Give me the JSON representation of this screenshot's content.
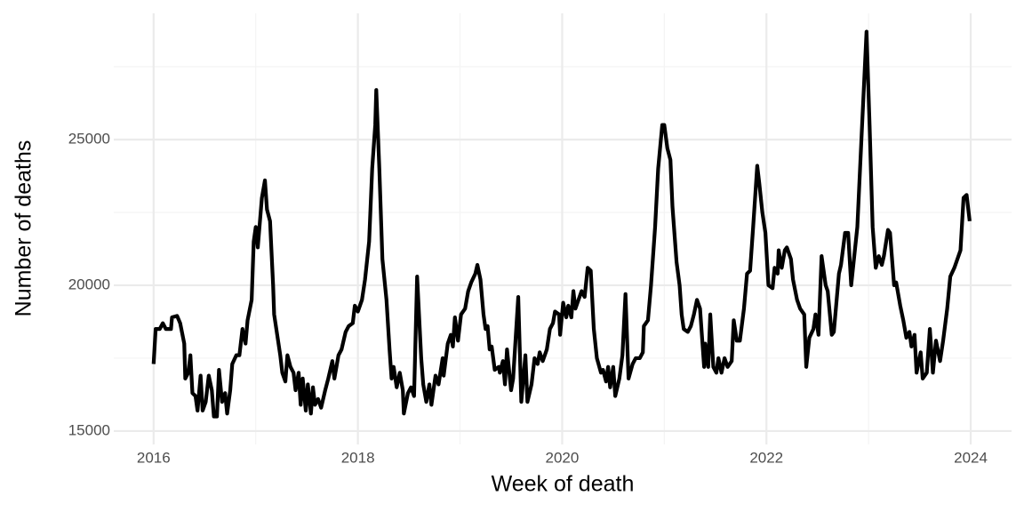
{
  "chart_data": {
    "type": "line",
    "x_label": "Week of death",
    "y_label": "Number of deaths",
    "color": "#000000",
    "grid": true,
    "xlim": [
      2015.61,
      2024.4
    ],
    "xticks": [
      2016,
      2018,
      2020,
      2022,
      2024
    ],
    "xminor": [
      2017,
      2019,
      2021,
      2023
    ],
    "ylim": [
      14540,
      29330
    ],
    "yticks": [
      15000,
      20000,
      25000
    ],
    "yminor": [
      17500,
      22500,
      27500
    ],
    "x": [
      2016.0,
      2016.02,
      2016.06,
      2016.09,
      2016.12,
      2016.17,
      2016.18,
      2016.23,
      2016.26,
      2016.3,
      2016.31,
      2016.34,
      2016.36,
      2016.38,
      2016.41,
      2016.43,
      2016.46,
      2016.48,
      2016.51,
      2016.54,
      2016.57,
      2016.59,
      2016.62,
      2016.64,
      2016.67,
      2016.7,
      2016.72,
      2016.75,
      2016.77,
      2016.81,
      2016.84,
      2016.87,
      2016.9,
      2016.92,
      2016.96,
      2016.98,
      2017.0,
      2017.02,
      2017.06,
      2017.09,
      2017.11,
      2017.14,
      2017.17,
      2017.18,
      2017.21,
      2017.24,
      2017.26,
      2017.29,
      2017.31,
      2017.34,
      2017.37,
      2017.39,
      2017.42,
      2017.44,
      2017.46,
      2017.49,
      2017.51,
      2017.54,
      2017.56,
      2017.58,
      2017.61,
      2017.64,
      2017.68,
      2017.71,
      2017.75,
      2017.77,
      2017.81,
      2017.84,
      2017.88,
      2017.91,
      2017.95,
      2017.97,
      2018.0,
      2018.04,
      2018.07,
      2018.11,
      2018.14,
      2018.17,
      2018.18,
      2018.21,
      2018.24,
      2018.28,
      2018.31,
      2018.33,
      2018.35,
      2018.38,
      2018.41,
      2018.44,
      2018.45,
      2018.49,
      2018.52,
      2018.55,
      2018.58,
      2018.62,
      2018.64,
      2018.67,
      2018.7,
      2018.72,
      2018.76,
      2018.79,
      2018.83,
      2018.84,
      2018.88,
      2018.91,
      2018.93,
      2018.95,
      2018.98,
      2019.01,
      2019.05,
      2019.08,
      2019.11,
      2019.15,
      2019.17,
      2019.2,
      2019.23,
      2019.25,
      2019.27,
      2019.29,
      2019.31,
      2019.34,
      2019.38,
      2019.39,
      2019.42,
      2019.44,
      2019.46,
      2019.5,
      2019.52,
      2019.57,
      2019.6,
      2019.64,
      2019.66,
      2019.7,
      2019.73,
      2019.76,
      2019.78,
      2019.81,
      2019.85,
      2019.88,
      2019.91,
      2019.93,
      2019.97,
      2019.98,
      2020.01,
      2020.04,
      2020.06,
      2020.09,
      2020.11,
      2020.13,
      2020.17,
      2020.19,
      2020.22,
      2020.25,
      2020.28,
      2020.31,
      2020.34,
      2020.38,
      2020.4,
      2020.43,
      2020.45,
      2020.47,
      2020.5,
      2020.52,
      2020.56,
      2020.59,
      2020.62,
      2020.65,
      2020.69,
      2020.72,
      2020.76,
      2020.79,
      2020.8,
      2020.84,
      2020.87,
      2020.91,
      2020.94,
      2020.98,
      2021.0,
      2021.03,
      2021.06,
      2021.08,
      2021.12,
      2021.15,
      2021.17,
      2021.19,
      2021.23,
      2021.26,
      2021.29,
      2021.32,
      2021.35,
      2021.39,
      2021.4,
      2021.43,
      2021.45,
      2021.48,
      2021.51,
      2021.53,
      2021.56,
      2021.59,
      2021.62,
      2021.66,
      2021.68,
      2021.71,
      2021.74,
      2021.78,
      2021.81,
      2021.84,
      2021.87,
      2021.91,
      2021.93,
      2021.96,
      2021.99,
      2022.02,
      2022.06,
      2022.08,
      2022.11,
      2022.12,
      2022.15,
      2022.18,
      2022.2,
      2022.24,
      2022.26,
      2022.3,
      2022.33,
      2022.37,
      2022.39,
      2022.42,
      2022.46,
      2022.48,
      2022.51,
      2022.54,
      2022.58,
      2022.6,
      2022.64,
      2022.66,
      2022.71,
      2022.73,
      2022.77,
      2022.8,
      2022.83,
      2022.86,
      2022.89,
      2022.93,
      2022.98,
      2023.01,
      2023.04,
      2023.07,
      2023.1,
      2023.13,
      2023.15,
      2023.19,
      2023.21,
      2023.25,
      2023.27,
      2023.31,
      2023.34,
      2023.37,
      2023.4,
      2023.42,
      2023.45,
      2023.47,
      2023.51,
      2023.53,
      2023.57,
      2023.6,
      2023.63,
      2023.66,
      2023.7,
      2023.73,
      2023.77,
      2023.8,
      2023.84,
      2023.87,
      2023.9,
      2023.93,
      2023.96,
      2023.99
    ],
    "values": [
      17300,
      18500,
      18500,
      18700,
      18500,
      18500,
      18900,
      18950,
      18700,
      18000,
      16800,
      17000,
      17600,
      16300,
      16200,
      15700,
      16900,
      15700,
      16000,
      16900,
      16400,
      15500,
      15500,
      17100,
      16000,
      16300,
      15600,
      16400,
      17300,
      17600,
      17600,
      18500,
      18000,
      18800,
      19500,
      21500,
      22000,
      21300,
      23000,
      23600,
      22600,
      22200,
      20000,
      19000,
      18300,
      17600,
      17000,
      16700,
      17600,
      17200,
      17000,
      16400,
      17000,
      15900,
      16800,
      15700,
      16600,
      15600,
      16500,
      15900,
      16100,
      15800,
      16400,
      16800,
      17400,
      16800,
      17600,
      17800,
      18400,
      18600,
      18700,
      19300,
      19100,
      19500,
      20200,
      21500,
      24000,
      25500,
      26700,
      24000,
      20900,
      19500,
      17800,
      16800,
      17200,
      16500,
      17000,
      16400,
      15600,
      16300,
      16500,
      16200,
      20300,
      17500,
      16600,
      16000,
      16600,
      15900,
      16900,
      16600,
      17500,
      16900,
      18000,
      18300,
      17900,
      18900,
      18100,
      19000,
      19200,
      19800,
      20100,
      20400,
      20700,
      20200,
      19000,
      18500,
      18600,
      17800,
      17900,
      17100,
      17200,
      17000,
      17400,
      16600,
      17800,
      16400,
      16800,
      19600,
      16000,
      17600,
      16000,
      16600,
      17500,
      17300,
      17700,
      17400,
      17800,
      18500,
      18700,
      19100,
      19000,
      18300,
      19400,
      18900,
      19300,
      18900,
      19800,
      19200,
      19600,
      19800,
      19600,
      20600,
      20500,
      18500,
      17500,
      17000,
      17100,
      16700,
      17200,
      16500,
      17200,
      16200,
      16800,
      17600,
      19700,
      16800,
      17300,
      17500,
      17500,
      17700,
      18600,
      18800,
      20000,
      22000,
      24000,
      25500,
      25500,
      24700,
      24300,
      22700,
      20800,
      20000,
      19000,
      18500,
      18400,
      18600,
      19000,
      19500,
      19200,
      17200,
      18000,
      17200,
      19000,
      17200,
      17000,
      17500,
      17000,
      17500,
      17200,
      17400,
      18800,
      18100,
      18100,
      19200,
      20400,
      20500,
      22000,
      24100,
      23500,
      22500,
      21800,
      20000,
      19900,
      20600,
      20400,
      21200,
      20600,
      21200,
      21300,
      20900,
      20200,
      19500,
      19200,
      19000,
      17200,
      18200,
      18500,
      19000,
      18300,
      21000,
      20000,
      19800,
      18300,
      18400,
      20400,
      20700,
      21800,
      21800,
      20000,
      21000,
      22000,
      25000,
      28700,
      25500,
      22000,
      20600,
      21000,
      20700,
      21000,
      21900,
      21800,
      20000,
      20100,
      19300,
      18800,
      18200,
      18400,
      17900,
      18300,
      17000,
      17700,
      16800,
      17000,
      18500,
      17000,
      18100,
      17400,
      18100,
      19200,
      20300,
      20600,
      20900,
      21200,
      23000,
      23100,
      22200
    ]
  }
}
